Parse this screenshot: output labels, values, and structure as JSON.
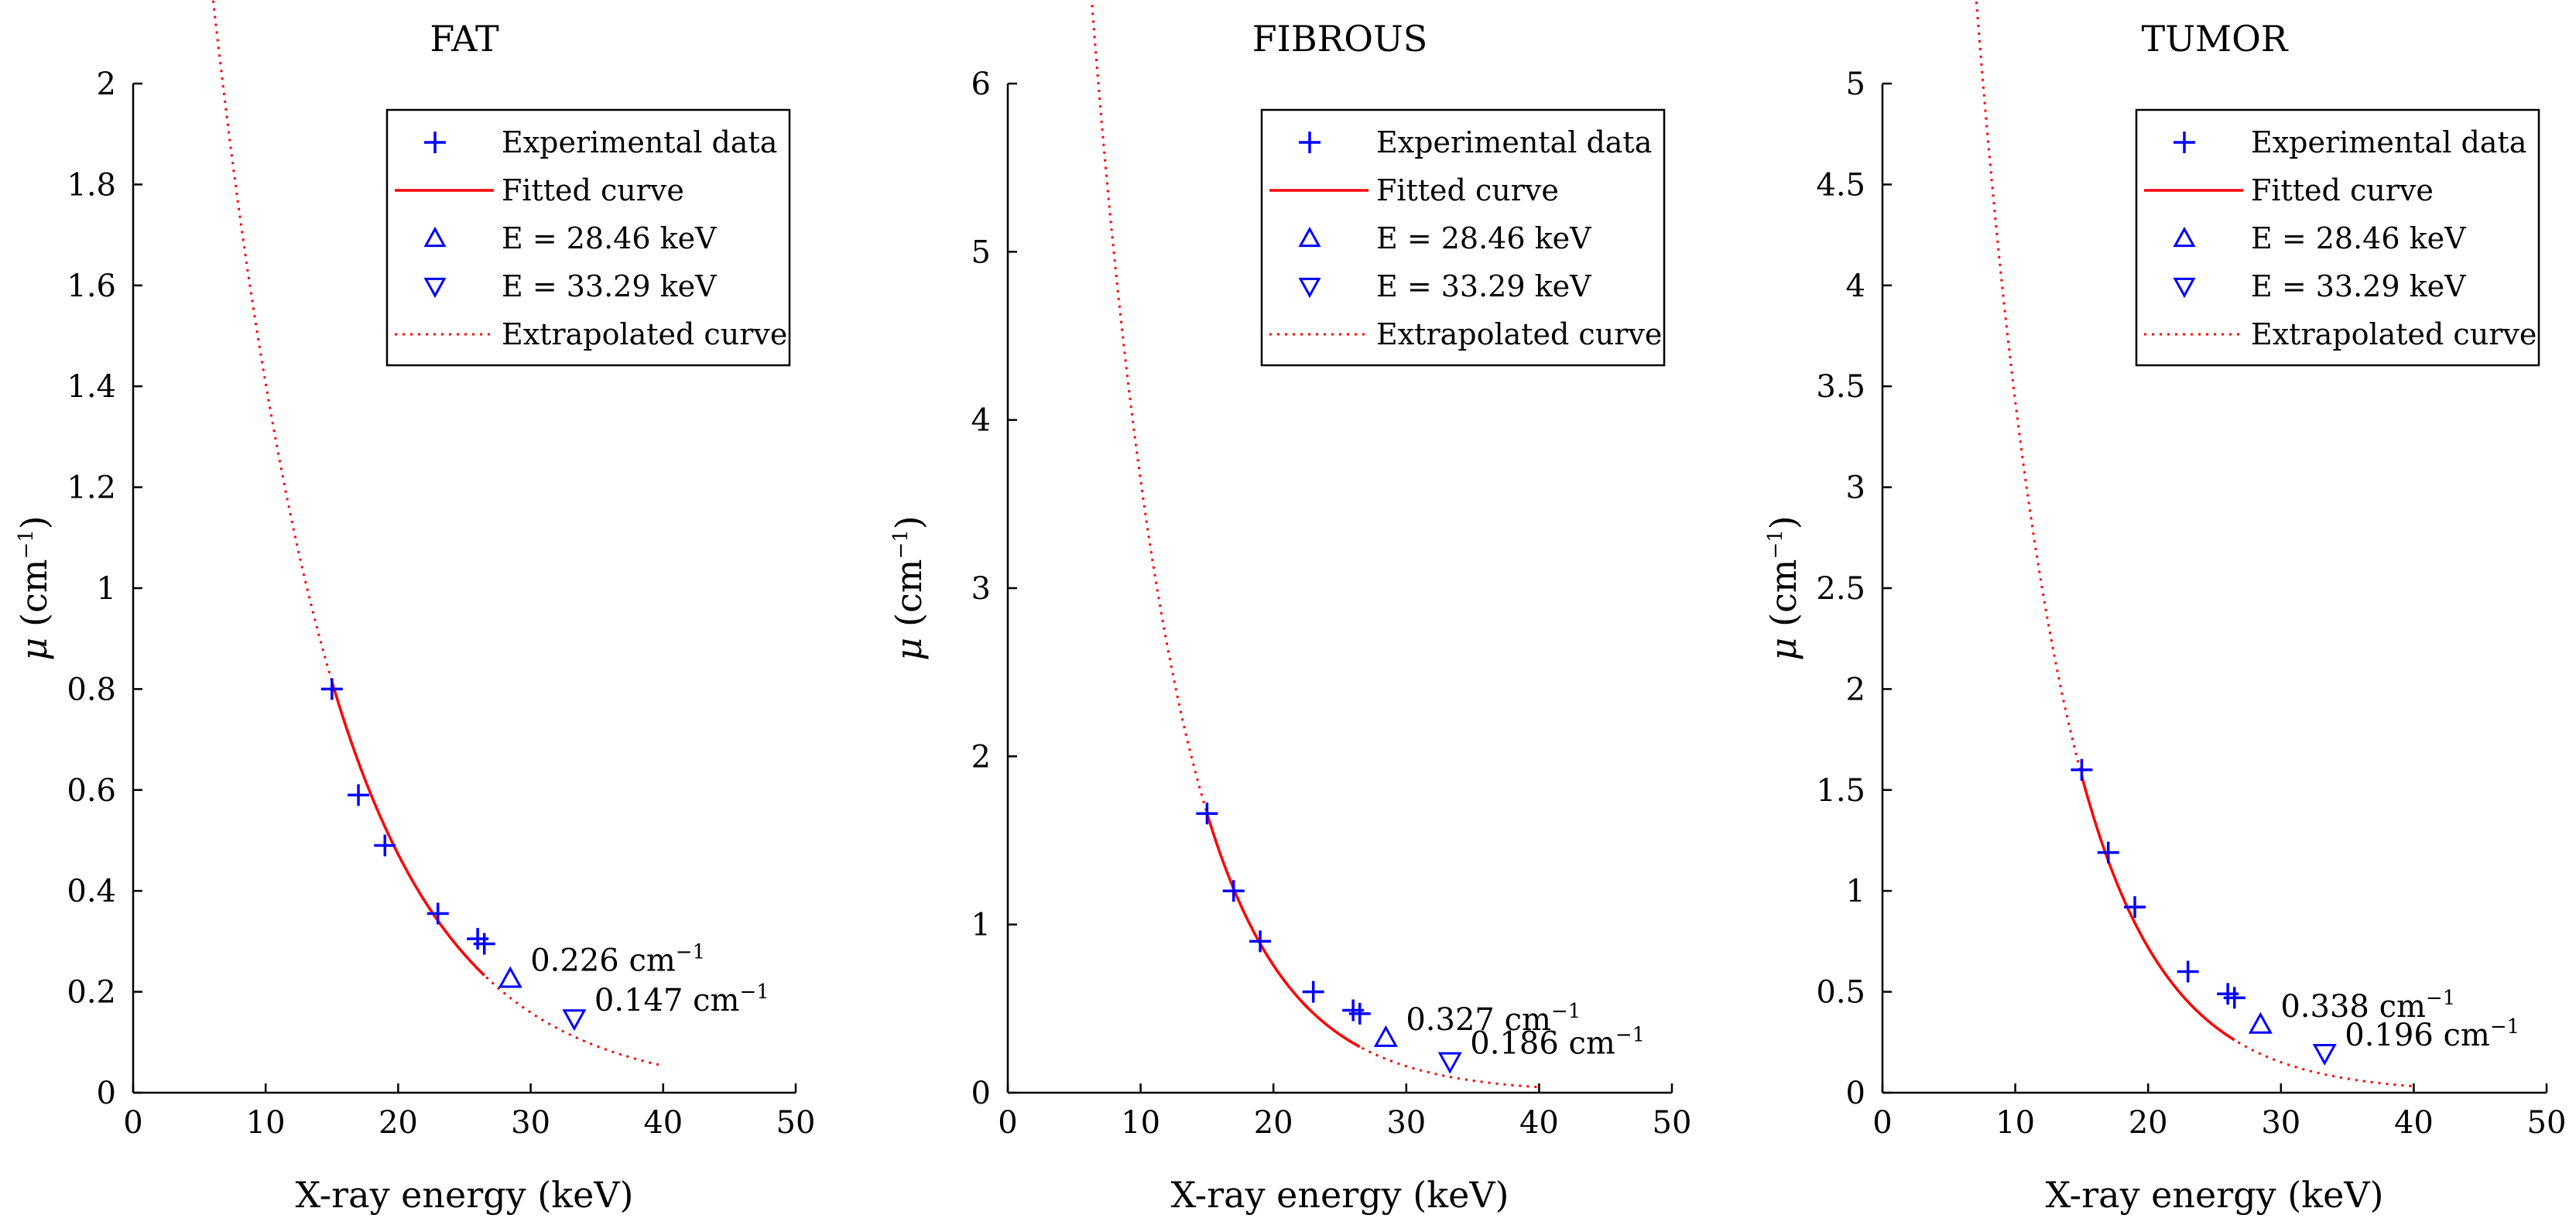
{
  "colors": {
    "experimental": "#0000ff",
    "fitted": "#ff0000",
    "extrapolated": "#ff0000",
    "markers": "#0000ff",
    "axes": "#000000"
  },
  "legend": {
    "experimental": "Experimental data",
    "fitted": "Fitted curve",
    "e1": "E = 28.46 keV",
    "e2": "E = 33.29 keV",
    "extrapolated": "Extrapolated curve"
  },
  "chart_data": [
    {
      "type": "scatter",
      "title": "FAT",
      "xlabel": "X-ray energy (keV)",
      "ylabel_main": "μ",
      "ylabel_unit": "(cm",
      "ylabel_exp": "−1",
      "ylabel_close": ")",
      "xlim": [
        0,
        50
      ],
      "ylim": [
        0,
        2
      ],
      "xticks": [
        0,
        10,
        20,
        30,
        40,
        50
      ],
      "xtick_labels": [
        "0",
        "10",
        "20",
        "30",
        "40",
        "50"
      ],
      "yticks": [
        0,
        0.2,
        0.4,
        0.6,
        0.8,
        1,
        1.2,
        1.4,
        1.6,
        1.8,
        2
      ],
      "ytick_labels": [
        "0",
        "0.2",
        "0.4",
        "0.6",
        "0.8",
        "1",
        "1.2",
        "1.4",
        "1.6",
        "1.8",
        "2"
      ],
      "experimental": {
        "x": [
          15,
          17,
          19,
          23,
          26,
          26.5
        ],
        "y": [
          0.8,
          0.59,
          0.49,
          0.355,
          0.305,
          0.295
        ]
      },
      "model": {
        "a": 4.18,
        "b": -0.109
      },
      "fitted_range": [
        15,
        26.5
      ],
      "extrapolated_range": [
        5,
        40
      ],
      "markers": [
        {
          "kind": "up",
          "x": 28.46,
          "y": 0.226,
          "label_value": "0.226 cm",
          "label_exp": "−1"
        },
        {
          "kind": "down",
          "x": 33.29,
          "y": 0.147,
          "label_value": "0.147 cm",
          "label_exp": "−1"
        }
      ]
    },
    {
      "type": "scatter",
      "title": "FIBROUS",
      "xlabel": "X-ray energy (keV)",
      "ylabel_main": "μ",
      "ylabel_unit": "(cm",
      "ylabel_exp": "−1",
      "ylabel_close": ")",
      "xlim": [
        0,
        50
      ],
      "ylim": [
        0,
        6
      ],
      "xticks": [
        0,
        10,
        20,
        30,
        40,
        50
      ],
      "xtick_labels": [
        "0",
        "10",
        "20",
        "30",
        "40",
        "50"
      ],
      "yticks": [
        0,
        1,
        2,
        3,
        4,
        5,
        6
      ],
      "ytick_labels": [
        "0",
        "1",
        "2",
        "3",
        "4",
        "5",
        "6"
      ],
      "experimental": {
        "x": [
          15,
          17,
          19,
          23,
          26,
          26.5
        ],
        "y": [
          1.66,
          1.2,
          0.9,
          0.6,
          0.49,
          0.47
        ]
      },
      "model": {
        "a": 17.5,
        "b": -0.157
      },
      "fitted_range": [
        15,
        26.5
      ],
      "extrapolated_range": [
        5,
        40
      ],
      "markers": [
        {
          "kind": "up",
          "x": 28.46,
          "y": 0.327,
          "label_value": "0.327 cm",
          "label_exp": "−1"
        },
        {
          "kind": "down",
          "x": 33.29,
          "y": 0.186,
          "label_value": "0.186 cm",
          "label_exp": "−1"
        }
      ]
    },
    {
      "type": "scatter",
      "title": "TUMOR",
      "xlabel": "X-ray energy (keV)",
      "ylabel_main": "μ",
      "ylabel_unit": "(cm",
      "ylabel_exp": "−1",
      "ylabel_close": ")",
      "xlim": [
        0,
        50
      ],
      "ylim": [
        0,
        5
      ],
      "xticks": [
        0,
        10,
        20,
        30,
        40,
        50
      ],
      "xtick_labels": [
        "0",
        "10",
        "20",
        "30",
        "40",
        "50"
      ],
      "yticks": [
        0,
        0.5,
        1,
        1.5,
        2,
        2.5,
        3,
        3.5,
        4,
        4.5,
        5
      ],
      "ytick_labels": [
        "0",
        "0.5",
        "1",
        "1.5",
        "2",
        "2.5",
        "3",
        "3.5",
        "4",
        "4.5",
        "5"
      ],
      "experimental": {
        "x": [
          15,
          17,
          19,
          23,
          26,
          26.5
        ],
        "y": [
          1.6,
          1.19,
          0.92,
          0.6,
          0.49,
          0.47
        ]
      },
      "model": {
        "a": 16.3,
        "b": -0.156
      },
      "fitted_range": [
        15,
        26.5
      ],
      "extrapolated_range": [
        5,
        40
      ],
      "markers": [
        {
          "kind": "up",
          "x": 28.46,
          "y": 0.338,
          "label_value": "0.338 cm",
          "label_exp": "−1"
        },
        {
          "kind": "down",
          "x": 33.29,
          "y": 0.196,
          "label_value": "0.196 cm",
          "label_exp": "−1"
        }
      ]
    }
  ]
}
